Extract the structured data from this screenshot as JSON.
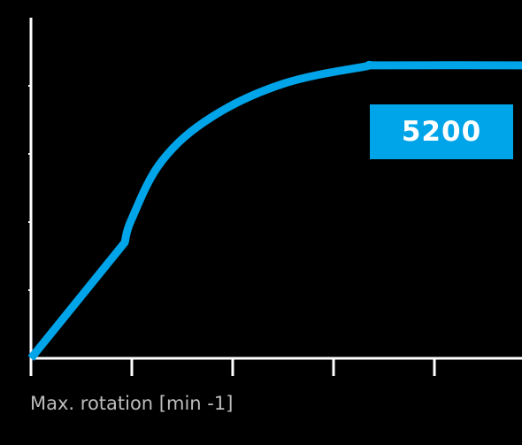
{
  "colors": {
    "background": "#000000",
    "axis": "#ffffff",
    "curve": "#00a4e8",
    "badge_background": "#00a4e8",
    "badge_text": "#ffffff",
    "label_text": "#bdbdbd"
  },
  "chart_data": {
    "type": "line",
    "title": "",
    "xlabel": "Max. rotation [min -1]",
    "ylabel": "",
    "xlim": [
      0,
      5
    ],
    "ylim": [
      0,
      5
    ],
    "grid": false,
    "x_tick_count": 5,
    "y_tick_count": 4,
    "annotation": "5200",
    "series": [
      {
        "values": [
          [
            0.0,
            0.0
          ],
          [
            0.93,
            1.7
          ],
          [
            1.0,
            2.05
          ],
          [
            1.3,
            2.9
          ],
          [
            1.8,
            3.55
          ],
          [
            2.5,
            4.03
          ],
          [
            3.3,
            4.28
          ],
          [
            3.5,
            4.3
          ],
          [
            5.0,
            4.3
          ]
        ]
      }
    ]
  }
}
